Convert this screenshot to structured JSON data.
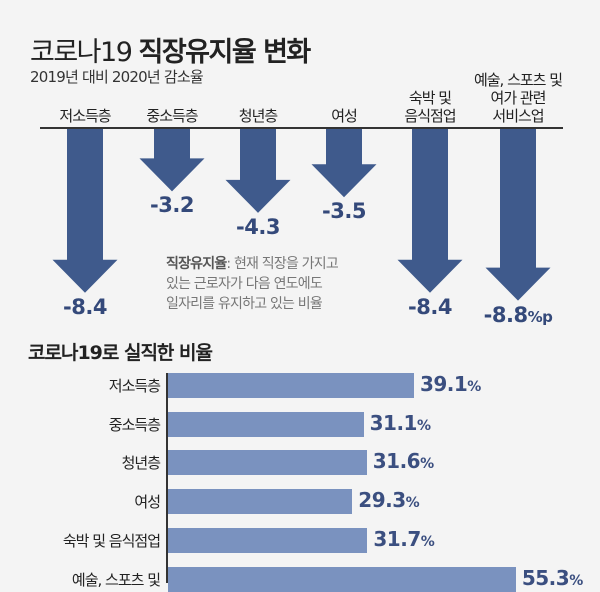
{
  "title": {
    "light": "코로나19",
    "bold": "직장유지율 변화"
  },
  "subtitle": "2019년 대비 2020년 감소율",
  "arrow_color": "#3f5a8c",
  "bar_color": "#7a92bf",
  "note": {
    "term": "직장유지율",
    "lines": [
      ": 현재 직장을 가지고",
      "있는 근로자가 다음 연도에도",
      "일자리를 유지하고 있는 비율"
    ]
  },
  "chart_data": [
    {
      "type": "bar",
      "orientation": "downward-arrows",
      "categories": [
        [
          "저소득층"
        ],
        [
          "중소득층"
        ],
        [
          "청년층"
        ],
        [
          "여성"
        ],
        [
          "숙박 및",
          "음식점업"
        ],
        [
          "예술, 스포츠 및",
          "여가 관련",
          "서비스업"
        ]
      ],
      "values": [
        -8.4,
        -3.2,
        -4.3,
        -3.5,
        -8.4,
        -8.8
      ],
      "labels": [
        "-8.4",
        "-3.2",
        "-4.3",
        "-3.5",
        "-8.4",
        "-8.8"
      ],
      "unit_last": "%p",
      "title": "코로나19 직장유지율 변화",
      "subtitle": "2019년 대비 2020년 감소율"
    },
    {
      "type": "bar",
      "orientation": "horizontal",
      "title": "코로나19로 실직한 비율",
      "categories": [
        "저소득층",
        "중소득층",
        "청년층",
        "여성",
        "숙박 및 음식점업",
        "예술, 스포츠 및"
      ],
      "values": [
        39.1,
        31.1,
        31.6,
        29.3,
        31.7,
        55.3
      ],
      "labels": [
        "39.1",
        "31.1",
        "31.6",
        "29.3",
        "31.7",
        "55.3"
      ],
      "unit": "%"
    }
  ]
}
